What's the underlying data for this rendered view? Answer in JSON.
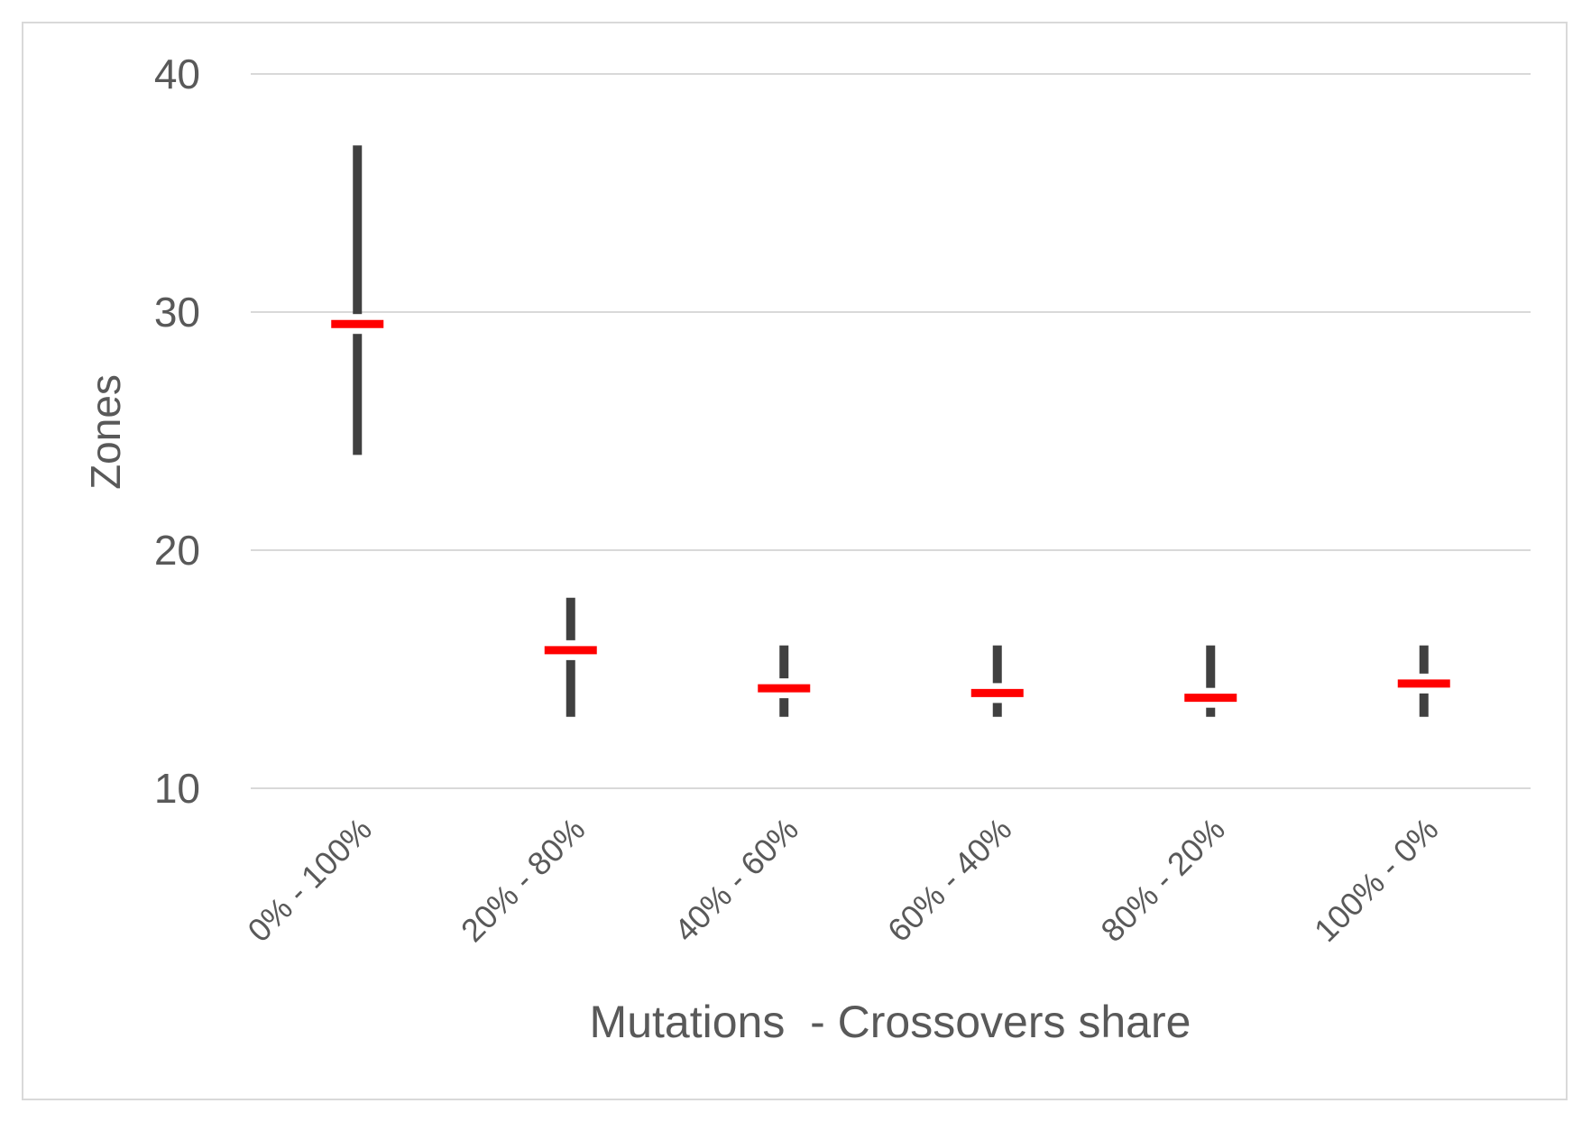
{
  "chart_data": {
    "type": "range",
    "title": "",
    "xlabel": "Mutations  - Crossovers share",
    "ylabel": "Zones",
    "ylim": [
      10,
      40
    ],
    "yticks": [
      10,
      20,
      30,
      40
    ],
    "grid": true,
    "categories": [
      "0% - 100%",
      "20% - 80%",
      "40% - 60%",
      "60% - 40%",
      "80% - 20%",
      "100% - 0%"
    ],
    "series": [
      {
        "values_min": [
          24,
          13,
          13,
          13,
          13,
          13
        ]
      },
      {
        "values_max": [
          37,
          18,
          16,
          16,
          16,
          16
        ]
      },
      {
        "values_mean": [
          29.5,
          15.8,
          14.2,
          14.0,
          13.8,
          14.4
        ]
      }
    ],
    "colors": {
      "range": "#404040",
      "mean": "#ff0000",
      "grid": "#d9d9d9",
      "text": "#595959"
    }
  }
}
